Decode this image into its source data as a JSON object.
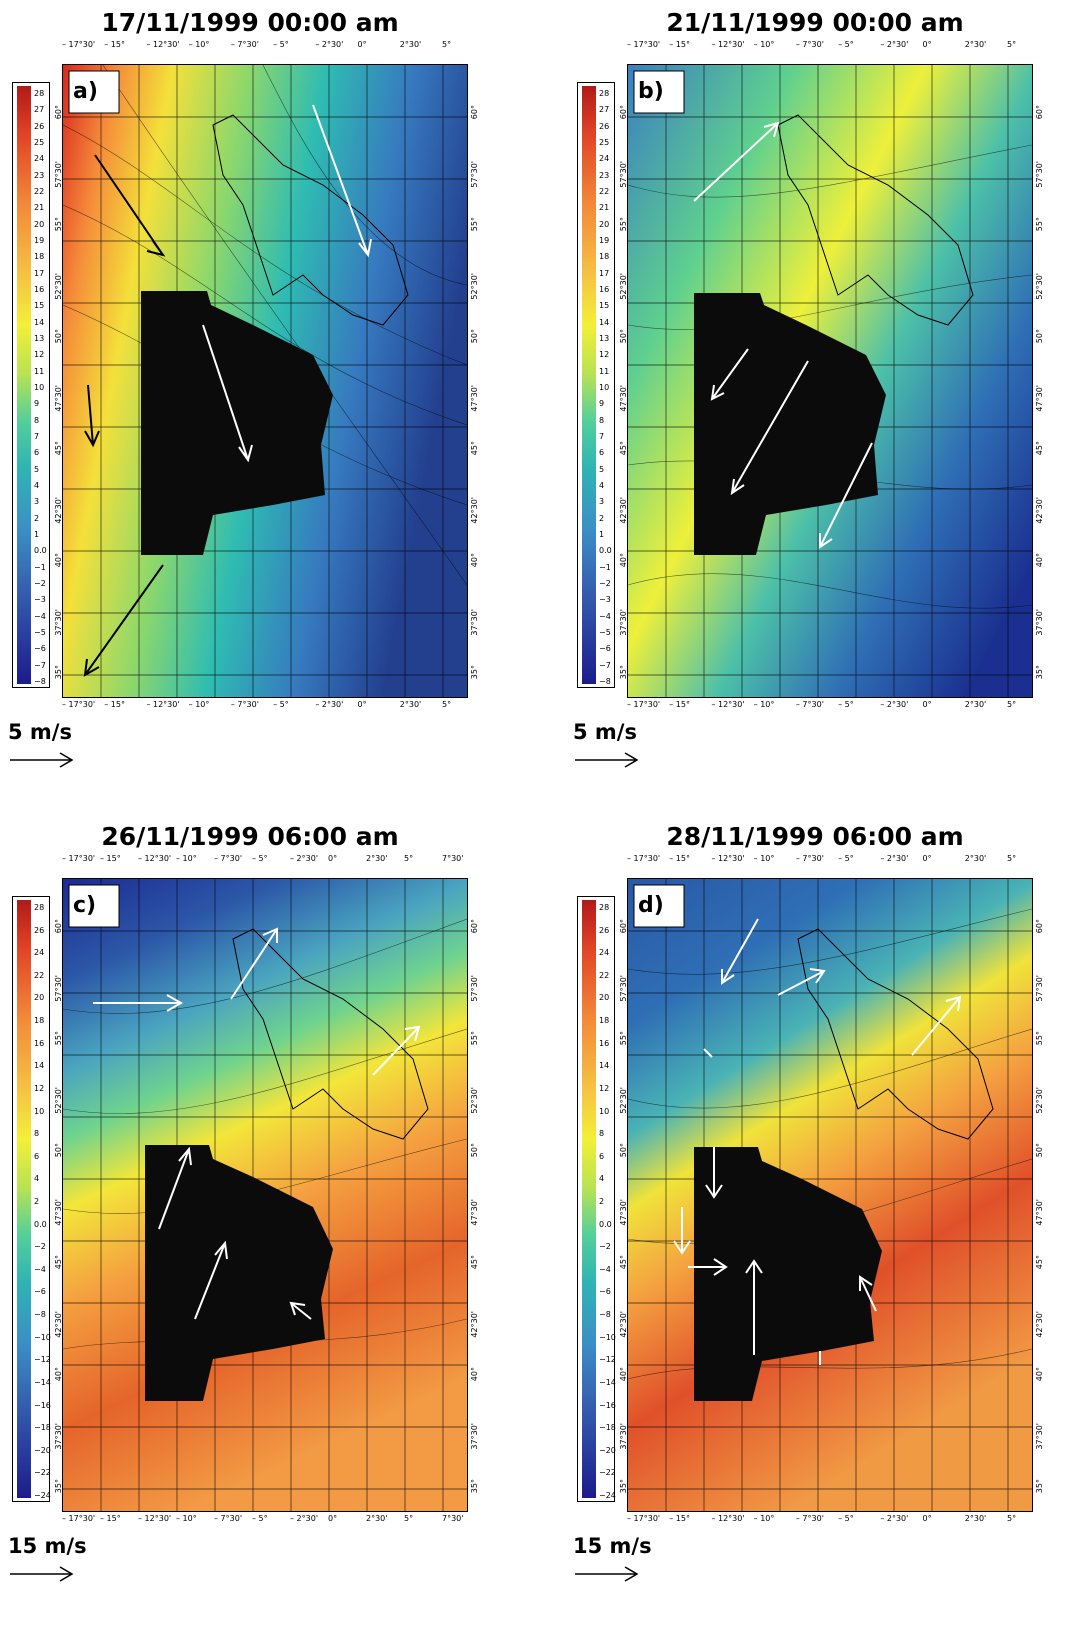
{
  "colors": {
    "bg": "#ffffff",
    "grid": "#000000",
    "vector": "#ffffff",
    "vector_dark": "#000000"
  },
  "panels": [
    {
      "id": "a",
      "title": "17/11/1999 00:00 am",
      "label": "a)",
      "scale_label": "5 m/s",
      "colorbar_labels": [
        "28",
        "27",
        "26",
        "25",
        "24",
        "23",
        "22",
        "21",
        "20",
        "19",
        "18",
        "17",
        "16",
        "15",
        "14",
        "13",
        "12",
        "11",
        "10",
        "9",
        "8",
        "7",
        "6",
        "5",
        "4",
        "3",
        "2",
        "1",
        "0.0",
        "−1",
        "−2",
        "−3",
        "−4",
        "−5",
        "−6",
        "−7",
        "−8"
      ],
      "top_ticks": [
        "– 17°30'",
        "– 15°",
        "– 12°30'",
        "– 10°",
        "– 7°30'",
        "– 5°",
        "– 2°30'",
        "0°",
        "2°30'",
        "5°"
      ],
      "bottom_ticks": [
        "– 17°30'",
        "– 15°",
        "– 12°30'",
        "– 10°",
        "– 7°30'",
        "– 5°",
        "– 2°30'",
        "0°",
        "2°30'",
        "5°"
      ],
      "left_ticks": [
        "60°",
        "57°30'",
        "55°",
        "52°30'",
        "50°",
        "47°30'",
        "45°",
        "42°30'",
        "40°",
        "37°30'",
        "35°"
      ],
      "right_ticks": [
        "60°",
        "57°30'",
        "55°",
        "52°30'",
        "50°",
        "47°30'",
        "45°",
        "42°30'",
        "40°",
        "37°30'",
        "35°"
      ]
    },
    {
      "id": "b",
      "title": "21/11/1999 00:00 am",
      "label": "b)",
      "scale_label": "5 m/s",
      "colorbar_labels": [
        "28",
        "27",
        "26",
        "25",
        "24",
        "23",
        "22",
        "21",
        "20",
        "19",
        "18",
        "17",
        "16",
        "15",
        "14",
        "13",
        "12",
        "11",
        "10",
        "9",
        "8",
        "7",
        "6",
        "5",
        "4",
        "3",
        "2",
        "1",
        "0.0",
        "−1",
        "−2",
        "−3",
        "−4",
        "−5",
        "−6",
        "−7",
        "−8"
      ],
      "top_ticks": [
        "– 17°30'",
        "– 15°",
        "– 12°30'",
        "– 10°",
        "– 7°30'",
        "– 5°",
        "– 2°30'",
        "0°",
        "2°30'",
        "5°"
      ],
      "bottom_ticks": [
        "– 17°30'",
        "– 15°",
        "– 12°30'",
        "– 10°",
        "– 7°30'",
        "– 5°",
        "– 2°30'",
        "0°",
        "2°30'",
        "5°"
      ],
      "left_ticks": [
        "60°",
        "57°30'",
        "55°",
        "52°30'",
        "50°",
        "47°30'",
        "45°",
        "42°30'",
        "40°",
        "37°30'",
        "35°"
      ],
      "right_ticks": [
        "60°",
        "57°30'",
        "55°",
        "52°30'",
        "50°",
        "47°30'",
        "45°",
        "42°30'",
        "40°",
        "37°30'",
        "35°"
      ]
    },
    {
      "id": "c",
      "title": "26/11/1999 06:00 am",
      "label": "c)",
      "scale_label": "15 m/s",
      "colorbar_labels": [
        "28",
        "26",
        "24",
        "22",
        "20",
        "18",
        "16",
        "14",
        "12",
        "10",
        "8",
        "6",
        "4",
        "2",
        "0.0",
        "−2",
        "−4",
        "−6",
        "−8",
        "−10",
        "−12",
        "−14",
        "−16",
        "−18",
        "−20",
        "−22",
        "−24"
      ],
      "top_ticks": [
        "– 17°30'",
        "– 15°",
        "– 12°30'",
        "– 10°",
        "– 7°30'",
        "– 5°",
        "– 2°30'",
        "0°",
        "2°30'",
        "5°",
        "7°30'"
      ],
      "bottom_ticks": [
        "– 17°30'",
        "– 15°",
        "– 12°30'",
        "– 10°",
        "– 7°30'",
        "– 5°",
        "– 2°30'",
        "0°",
        "2°30'",
        "5°",
        "7°30'"
      ],
      "left_ticks": [
        "60°",
        "57°30'",
        "55°",
        "52°30'",
        "50°",
        "47°30'",
        "45°",
        "42°30'",
        "40°",
        "37°30'",
        "35°"
      ],
      "right_ticks": [
        "60°",
        "57°30'",
        "55°",
        "52°30'",
        "50°",
        "47°30'",
        "45°",
        "42°30'",
        "40°",
        "37°30'",
        "35°"
      ]
    },
    {
      "id": "d",
      "title": "28/11/1999 06:00 am",
      "label": "d)",
      "scale_label": "15 m/s",
      "colorbar_labels": [
        "28",
        "26",
        "24",
        "22",
        "20",
        "18",
        "16",
        "14",
        "12",
        "10",
        "8",
        "6",
        "4",
        "2",
        "0.0",
        "−2",
        "−4",
        "−6",
        "−8",
        "−10",
        "−12",
        "−14",
        "−16",
        "−18",
        "−20",
        "−22",
        "−24"
      ],
      "top_ticks": [
        "– 17°30'",
        "– 15°",
        "– 12°30'",
        "– 10°",
        "– 7°30'",
        "– 5°",
        "– 2°30'",
        "0°",
        "2°30'",
        "5°"
      ],
      "bottom_ticks": [
        "– 17°30'",
        "– 15°",
        "– 12°30'",
        "– 10°",
        "– 7°30'",
        "– 5°",
        "– 2°30'",
        "0°",
        "2°30'",
        "5°"
      ],
      "left_ticks": [
        "60°",
        "57°30'",
        "55°",
        "52°30'",
        "50°",
        "47°30'",
        "45°",
        "42°30'",
        "40°",
        "37°30'",
        "35°"
      ],
      "right_ticks": [
        "60°",
        "57°30'",
        "55°",
        "52°30'",
        "50°",
        "47°30'",
        "45°",
        "42°30'",
        "40°",
        "37°30'",
        "35°"
      ]
    }
  ]
}
